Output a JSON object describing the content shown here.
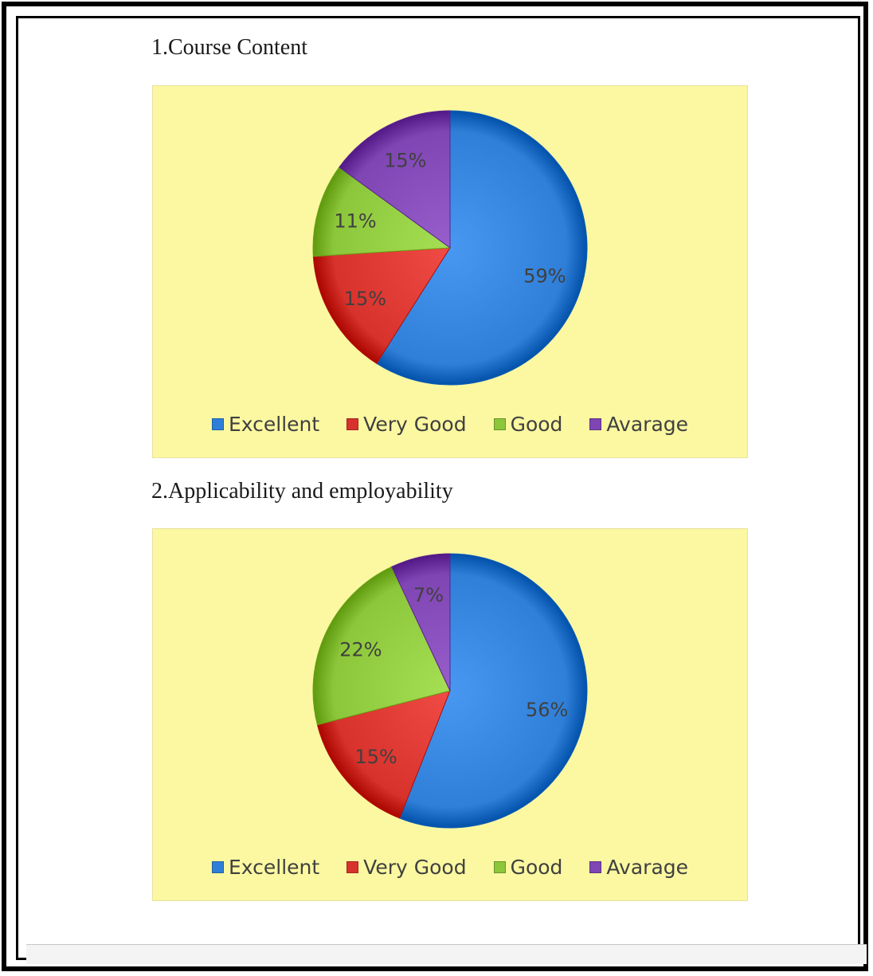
{
  "sections": [
    {
      "title": "1.Course Content"
    },
    {
      "title": "2.Applicability and employability"
    }
  ],
  "colors": {
    "Excellent": "#2f7fd8",
    "Very Good": "#d8322c",
    "Good": "#8cc63a",
    "Avarage": "#7f45b3"
  },
  "legend": [
    "Excellent",
    "Very Good",
    "Good",
    "Avarage"
  ],
  "chart_data": [
    {
      "type": "pie",
      "title": "1.Course Content",
      "categories": [
        "Excellent",
        "Very Good",
        "Good",
        "Avarage"
      ],
      "values": [
        59,
        15,
        11,
        15
      ],
      "labels": [
        "59%",
        "15%",
        "11%",
        "15%"
      ],
      "legend_position": "bottom"
    },
    {
      "type": "pie",
      "title": "2.Applicability and employability",
      "categories": [
        "Excellent",
        "Very Good",
        "Good",
        "Avarage"
      ],
      "values": [
        56,
        15,
        22,
        7
      ],
      "labels": [
        "56%",
        "15%",
        "22%",
        "7%"
      ],
      "legend_position": "bottom"
    }
  ]
}
